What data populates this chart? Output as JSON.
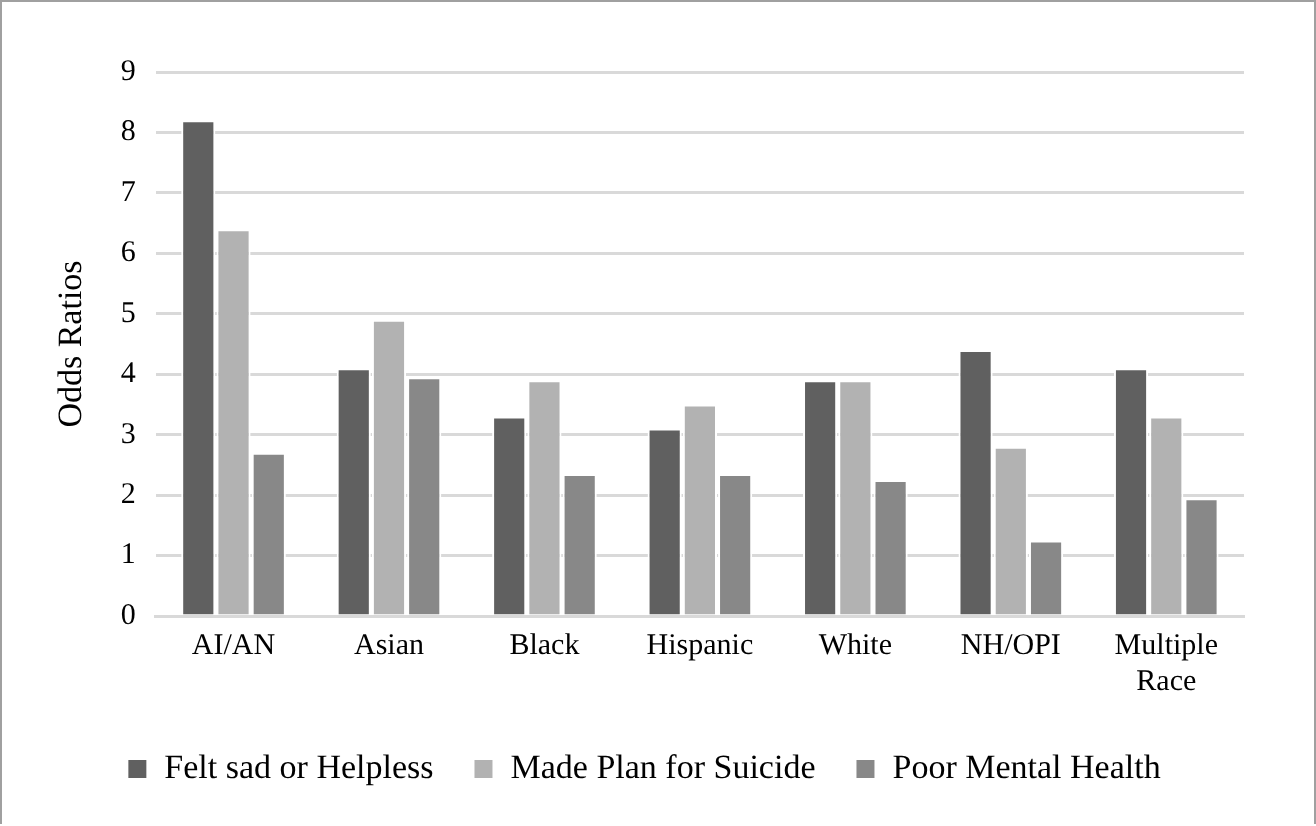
{
  "chart_data": {
    "type": "bar",
    "ylabel": "Odds Ratios",
    "categories": [
      "AI/AN",
      "Asian",
      "Black",
      "Hispanic",
      "White",
      "NH/OPI",
      "Multiple Race"
    ],
    "series": [
      {
        "name": "Felt sad or Helpless",
        "color": "#606060",
        "values": [
          8.2,
          4.1,
          3.3,
          3.1,
          3.9,
          4.4,
          4.1
        ]
      },
      {
        "name": "Made Plan for Suicide",
        "color": "#b2b2b2",
        "values": [
          6.4,
          4.9,
          3.9,
          3.5,
          3.9,
          2.8,
          3.3
        ]
      },
      {
        "name": "Poor Mental Health",
        "color": "#888888",
        "values": [
          2.7,
          3.95,
          2.35,
          2.35,
          2.25,
          1.25,
          1.95
        ]
      }
    ],
    "ylim": [
      0,
      9
    ],
    "yticks": [
      0,
      1,
      2,
      3,
      4,
      5,
      6,
      7,
      8,
      9
    ],
    "grid": "y",
    "legend": "bottom"
  }
}
